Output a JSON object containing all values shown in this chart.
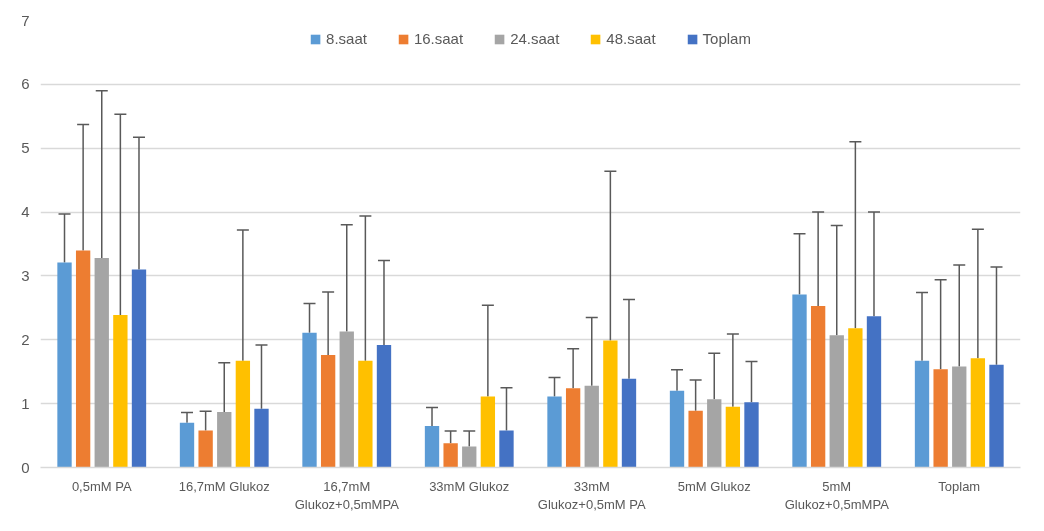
{
  "chart_data": {
    "type": "bar",
    "categories": [
      "0,5mM PA",
      "16,7mM Glukoz",
      "16,7mM Glukoz+0,5mMPA",
      "33mM Glukoz",
      "33mM Glukoz+0,5mM PA",
      "5mM Glukoz",
      "5mM Glukoz+0,5mMPA",
      "Toplam"
    ],
    "series": [
      {
        "name": "8.saat",
        "color": "#5b9bd5",
        "values": [
          3.21,
          0.7,
          2.11,
          0.65,
          1.11,
          1.2,
          2.71,
          1.67
        ],
        "errors": [
          [
            3.21,
            3.97
          ],
          [
            0.7,
            0.86
          ],
          [
            2.11,
            2.57
          ],
          [
            0.65,
            0.94
          ],
          [
            1.11,
            1.41
          ],
          [
            1.2,
            1.53
          ],
          [
            2.71,
            3.66
          ],
          [
            1.67,
            2.74
          ]
        ]
      },
      {
        "name": "16.saat",
        "color": "#ed7d31",
        "values": [
          3.4,
          0.58,
          1.76,
          0.38,
          1.24,
          0.89,
          2.53,
          1.54
        ],
        "errors": [
          [
            3.4,
            5.37
          ],
          [
            0.58,
            0.88
          ],
          [
            1.76,
            2.75
          ],
          [
            0.38,
            0.57
          ],
          [
            1.24,
            1.86
          ],
          [
            0.89,
            1.37
          ],
          [
            2.53,
            4.0
          ],
          [
            1.54,
            2.94
          ]
        ]
      },
      {
        "name": "24.saat",
        "color": "#a5a5a5",
        "values": [
          3.28,
          0.87,
          2.13,
          0.33,
          1.28,
          1.07,
          2.07,
          1.58
        ],
        "errors": [
          [
            3.28,
            5.9
          ],
          [
            0.87,
            1.64
          ],
          [
            2.13,
            3.8
          ],
          [
            0.33,
            0.57
          ],
          [
            1.28,
            2.35
          ],
          [
            1.07,
            1.79
          ],
          [
            2.07,
            3.79
          ],
          [
            1.58,
            3.17
          ]
        ]
      },
      {
        "name": "48.saat",
        "color": "#ffc000",
        "values": [
          2.39,
          1.67,
          1.67,
          1.11,
          1.99,
          0.95,
          2.18,
          1.71
        ],
        "errors": [
          [
            2.39,
            5.53
          ],
          [
            1.67,
            3.72
          ],
          [
            1.67,
            3.94
          ],
          [
            1.11,
            2.54
          ],
          [
            1.99,
            4.64
          ],
          [
            0.95,
            2.09
          ],
          [
            2.18,
            5.1
          ],
          [
            1.71,
            3.73
          ]
        ]
      },
      {
        "name": "Toplam",
        "color": "#4472c4",
        "values": [
          3.1,
          0.92,
          1.92,
          0.58,
          1.39,
          1.02,
          2.37,
          1.61
        ],
        "errors": [
          [
            3.1,
            5.17
          ],
          [
            0.92,
            1.92
          ],
          [
            1.92,
            3.24
          ],
          [
            0.58,
            1.25
          ],
          [
            1.39,
            2.63
          ],
          [
            1.02,
            1.66
          ],
          [
            2.37,
            4.0
          ],
          [
            1.61,
            3.14
          ]
        ]
      }
    ],
    "ylim": [
      0,
      7
    ],
    "yticks": [
      0,
      1,
      2,
      3,
      4,
      5,
      6,
      7
    ],
    "grid": "y",
    "legend": "top"
  }
}
